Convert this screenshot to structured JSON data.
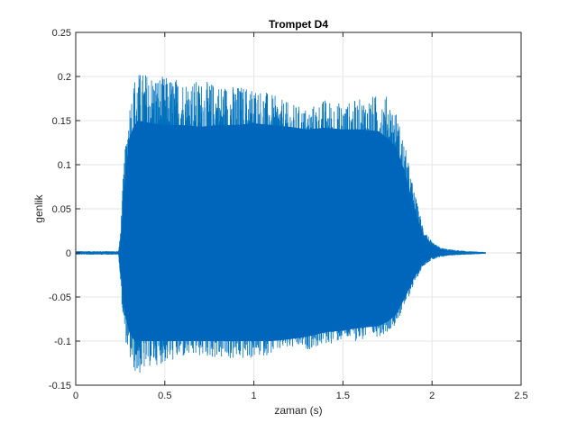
{
  "chart_data": {
    "type": "area",
    "title": "Trompet D4",
    "xlabel": "zaman (s)",
    "ylabel": "genlik",
    "xlim": [
      0,
      2.5
    ],
    "ylim": [
      -0.15,
      0.25
    ],
    "xticks": [
      0,
      0.5,
      1,
      1.5,
      2,
      2.5
    ],
    "xtick_labels": [
      "0",
      "0.5",
      "1",
      "1.5",
      "2",
      "2.5"
    ],
    "yticks": [
      -0.15,
      -0.1,
      -0.05,
      0,
      0.05,
      0.1,
      0.15,
      0.2,
      0.25
    ],
    "ytick_labels": [
      "-0.15",
      "-0.1",
      "-0.05",
      "0",
      "0.05",
      "0.1",
      "0.15",
      "0.2",
      "0.25"
    ],
    "grid": true,
    "series_color": "#0072BD",
    "dense_color": "#0066BB",
    "envelope": {
      "x": [
        0.0,
        0.24,
        0.25,
        0.27,
        0.3,
        0.33,
        0.35,
        0.4,
        0.5,
        0.6,
        0.7,
        0.8,
        0.9,
        1.0,
        1.1,
        1.2,
        1.3,
        1.4,
        1.5,
        1.6,
        1.7,
        1.75,
        1.8,
        1.85,
        1.9,
        1.95,
        2.0,
        2.05,
        2.1,
        2.2,
        2.3
      ],
      "upper": [
        0.002,
        0.002,
        0.02,
        0.1,
        0.17,
        0.2,
        0.205,
        0.205,
        0.2,
        0.198,
        0.195,
        0.193,
        0.19,
        0.19,
        0.18,
        0.17,
        0.165,
        0.175,
        0.17,
        0.175,
        0.18,
        0.178,
        0.16,
        0.12,
        0.07,
        0.03,
        0.012,
        0.006,
        0.004,
        0.002,
        0.001
      ],
      "lower": [
        -0.002,
        -0.002,
        -0.03,
        -0.09,
        -0.12,
        -0.135,
        -0.14,
        -0.13,
        -0.125,
        -0.12,
        -0.118,
        -0.12,
        -0.122,
        -0.12,
        -0.115,
        -0.11,
        -0.11,
        -0.105,
        -0.1,
        -0.1,
        -0.095,
        -0.09,
        -0.08,
        -0.06,
        -0.035,
        -0.015,
        -0.008,
        -0.005,
        -0.003,
        -0.002,
        -0.001
      ],
      "dense_upper": [
        0.001,
        0.001,
        0.01,
        0.07,
        0.13,
        0.145,
        0.15,
        0.148,
        0.145,
        0.145,
        0.143,
        0.145,
        0.145,
        0.147,
        0.145,
        0.143,
        0.14,
        0.142,
        0.14,
        0.14,
        0.138,
        0.13,
        0.12,
        0.09,
        0.05,
        0.02,
        0.008,
        0.004,
        0.002,
        0.001,
        0.0
      ],
      "dense_lower": [
        -0.001,
        -0.001,
        -0.02,
        -0.06,
        -0.09,
        -0.1,
        -0.1,
        -0.1,
        -0.1,
        -0.1,
        -0.1,
        -0.1,
        -0.1,
        -0.1,
        -0.1,
        -0.098,
        -0.095,
        -0.09,
        -0.088,
        -0.085,
        -0.083,
        -0.078,
        -0.07,
        -0.05,
        -0.028,
        -0.012,
        -0.005,
        -0.003,
        -0.002,
        -0.001,
        0.0
      ]
    }
  }
}
